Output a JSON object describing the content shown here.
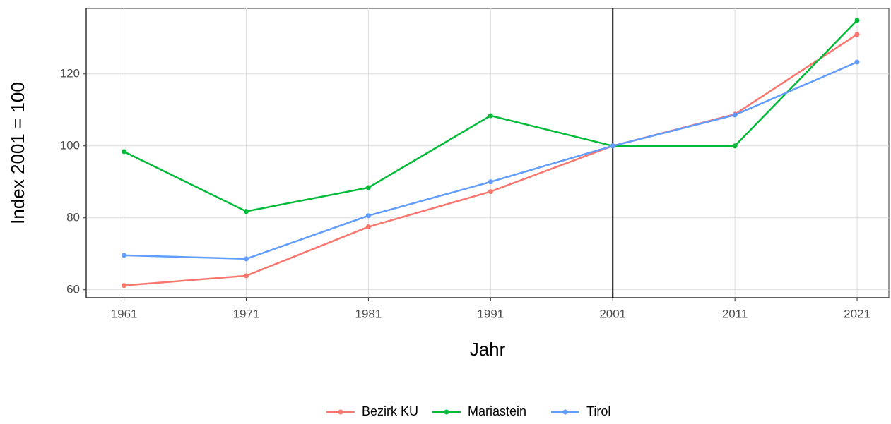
{
  "chart_data": {
    "type": "line",
    "x_label": "Jahr",
    "y_label": "Index 2001 = 100",
    "x": [
      1961,
      1971,
      1981,
      1991,
      2001,
      2011,
      2021
    ],
    "series": [
      {
        "name": "Bezirk KU",
        "color": "#F8766D",
        "values": [
          61.2,
          63.9,
          77.5,
          87.3,
          100,
          108.8,
          131.0
        ]
      },
      {
        "name": "Mariastein",
        "color": "#00BA38",
        "values": [
          98.4,
          81.8,
          88.4,
          108.4,
          100,
          100,
          134.9
        ]
      },
      {
        "name": "Tirol",
        "color": "#619CFF",
        "values": [
          69.6,
          68.6,
          80.6,
          90.0,
          100,
          108.6,
          123.3
        ]
      }
    ],
    "xlim": [
      1957.9,
      2023.6
    ],
    "ylim": [
      57.8,
      138.2
    ],
    "xticks": [
      1961,
      1971,
      1981,
      1991,
      2001,
      2011,
      2021
    ],
    "yticks": [
      60,
      80,
      100,
      120
    ],
    "vline": 2001,
    "grid": true,
    "legend": "bottom"
  }
}
